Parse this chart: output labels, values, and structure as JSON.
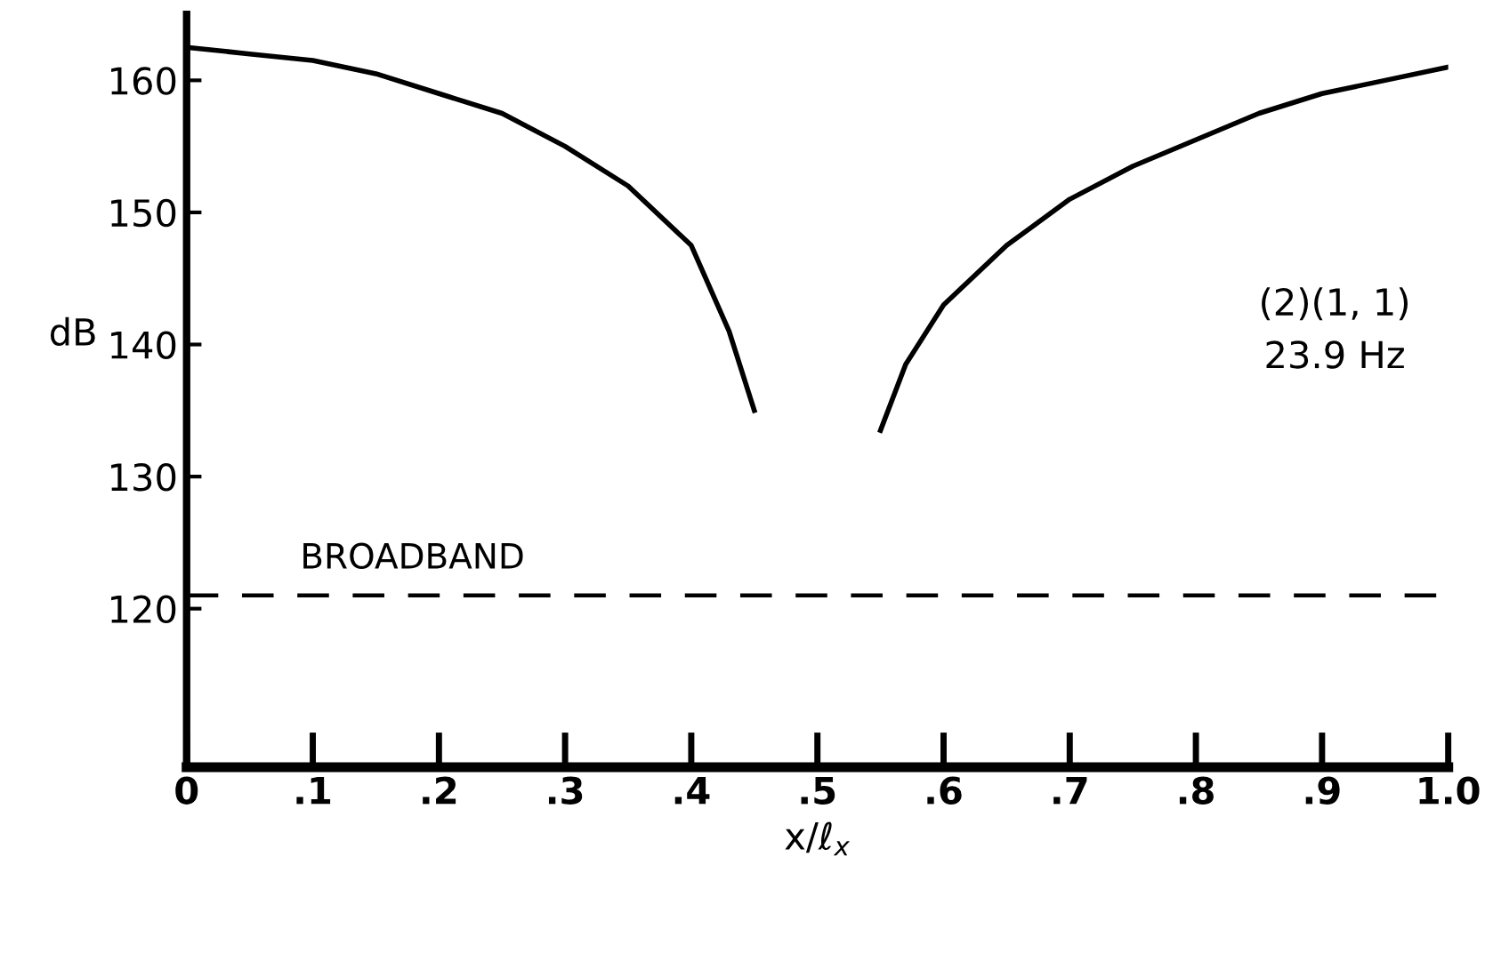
{
  "chart_data": {
    "type": "line",
    "xlabel": "x/ℓ$_{x}$",
    "ylabel": "dB",
    "series": [
      {
        "color": "#000000",
        "x": [
          0,
          0.05,
          0.1,
          0.15,
          0.2,
          0.25,
          0.3,
          0.35,
          0.4,
          0.43,
          0.45,
          0.5,
          0.55,
          0.57,
          0.6,
          0.65,
          0.7,
          0.75,
          0.8,
          0.85,
          0.9,
          0.95,
          1.0
        ],
        "values": [
          162.5,
          162,
          161.5,
          160.5,
          159,
          157.5,
          155,
          152,
          147.5,
          141,
          135,
          null,
          133.5,
          138.5,
          143,
          147.5,
          151,
          153.5,
          155.5,
          157.5,
          159,
          160,
          161
        ]
      }
    ],
    "xlim": [
      0,
      1.0
    ],
    "ylim": [
      108,
      165
    ],
    "xticks": [
      0,
      {
        "value": 0.1,
        "label": ".1"
      },
      {
        "value": 0.2,
        "label": ".2"
      },
      {
        "value": 0.3,
        "label": ".3"
      },
      {
        "value": 0.4,
        "label": ".4"
      },
      {
        "value": 0.5,
        "label": ".5"
      },
      {
        "value": 0.6,
        "label": ".6"
      },
      {
        "value": 0.7,
        "label": ".7"
      },
      {
        "value": 0.8,
        "label": ".8"
      },
      {
        "value": 0.9,
        "label": ".9"
      },
      {
        "value": 1.0,
        "label": "1.0"
      }
    ],
    "yticks": [
      120,
      130,
      140,
      150,
      160
    ],
    "ref_lines": [
      {
        "axis": "y",
        "value": 121,
        "label": "BROADBAND",
        "color": "#000000",
        "line_style": "dashed"
      }
    ],
    "annotations": [
      "(2)(1, 1)",
      "23.9 Hz"
    ],
    "grid": false,
    "legend": false,
    "marker": "none",
    "line_style": "solid"
  }
}
